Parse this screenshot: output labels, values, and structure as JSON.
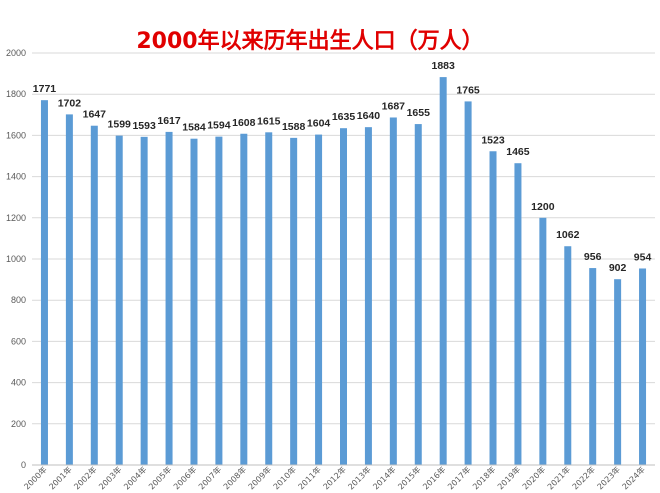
{
  "chart_data": {
    "type": "bar",
    "title": "2000年以来历年出生人口（万人）",
    "xlabel": "",
    "ylabel": "",
    "ylim": [
      0,
      2000
    ],
    "yticks": [
      0,
      200,
      400,
      600,
      800,
      1000,
      1200,
      1400,
      1600,
      1800,
      2000
    ],
    "grid": true,
    "legend": "none",
    "bar_color": "#5b9bd5",
    "title_color": "#e00000",
    "categories": [
      "2000年",
      "2001年",
      "2002年",
      "2003年",
      "2004年",
      "2005年",
      "2006年",
      "2007年",
      "2008年",
      "2009年",
      "2010年",
      "2011年",
      "2012年",
      "2013年",
      "2014年",
      "2015年",
      "2016年",
      "2017年",
      "2018年",
      "2019年",
      "2020年",
      "2021年",
      "2022年",
      "2023年",
      "2024年"
    ],
    "values": [
      1771,
      1702,
      1647,
      1599,
      1593,
      1617,
      1584,
      1594,
      1608,
      1615,
      1588,
      1604,
      1635,
      1640,
      1687,
      1655,
      1883,
      1765,
      1523,
      1465,
      1200,
      1062,
      956,
      902,
      954
    ],
    "data_labels": [
      "1771",
      "1702",
      "1647",
      "1599",
      "1593",
      "1617",
      "1584",
      "1594",
      "1608",
      "1615",
      "1588",
      "1604",
      "1635",
      "1640",
      "1687",
      "1655",
      "1883",
      "1765",
      "1523",
      "1465",
      "1200",
      "1062",
      "956",
      "902",
      "954"
    ]
  }
}
